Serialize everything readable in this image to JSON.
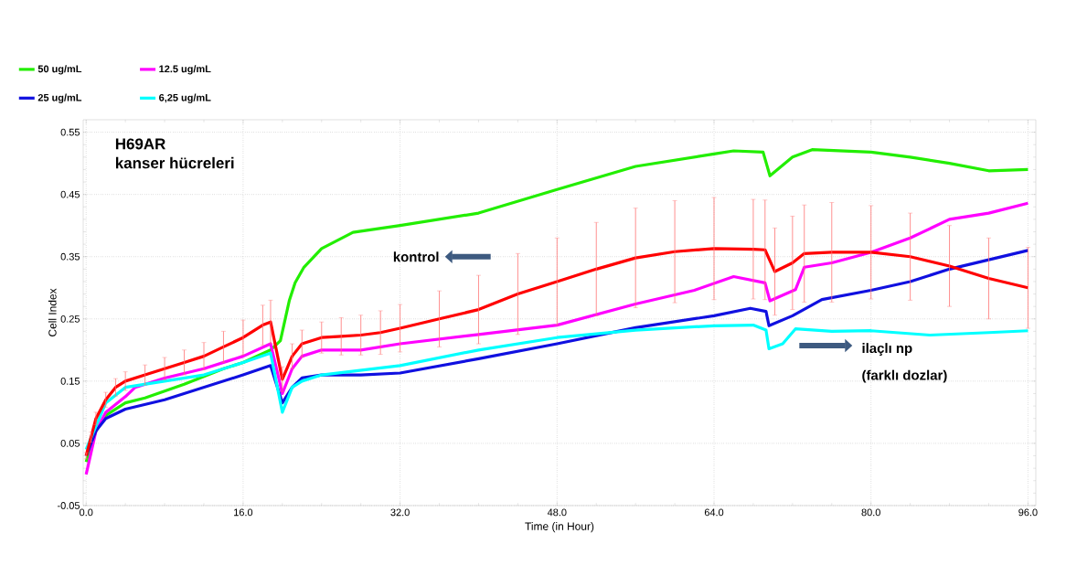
{
  "chart_data": {
    "type": "line",
    "title": "H69AR",
    "subtitle": "kanser hücreleri",
    "xlabel": "Time (in Hour)",
    "ylabel": "Cell Index",
    "annotations": [
      "kontrol",
      "ilaçlı np",
      "(farklı dozlar)"
    ],
    "xlim": [
      -0.3,
      96.8
    ],
    "ylim": [
      -0.05,
      0.57
    ],
    "xticks": [
      {
        "value": 0,
        "label": "0.0"
      },
      {
        "value": 16,
        "label": "16.0"
      },
      {
        "value": 32,
        "label": "32.0"
      },
      {
        "value": 48,
        "label": "48.0"
      },
      {
        "value": 64,
        "label": "64.0"
      },
      {
        "value": 80,
        "label": "80.0"
      },
      {
        "value": 96,
        "label": "96.0"
      }
    ],
    "yticks": [
      -0.05,
      0.05,
      0.15,
      0.25,
      0.35,
      0.45,
      0.55
    ],
    "grid": true,
    "legend": "top left",
    "series": [
      {
        "name": "50 ug/mL",
        "color": "#22ee00",
        "x": [
          0,
          1,
          2,
          4,
          6,
          10,
          14,
          16,
          18.8,
          19.8,
          20.7,
          21.3,
          22.2,
          24,
          27.2,
          32,
          40,
          48,
          56,
          64,
          66,
          69,
          69.7,
          72,
          74,
          80,
          84,
          88,
          92,
          96
        ],
        "values": [
          0.02,
          0.07,
          0.095,
          0.115,
          0.123,
          0.145,
          0.17,
          0.18,
          0.2,
          0.215,
          0.279,
          0.308,
          0.333,
          0.363,
          0.389,
          0.4,
          0.42,
          0.458,
          0.495,
          0.515,
          0.52,
          0.518,
          0.48,
          0.51,
          0.522,
          0.518,
          0.51,
          0.5,
          0.488,
          0.49
        ]
      },
      {
        "name": "12.5 ug/mL",
        "color": "#ff00ff",
        "x": [
          0,
          1,
          2,
          4,
          5,
          8,
          12,
          16,
          18.8,
          20,
          21,
          22,
          24,
          28,
          32,
          40,
          48,
          56,
          62,
          66,
          69.2,
          69.7,
          72.3,
          73.2,
          76,
          80,
          84,
          88,
          92,
          96
        ],
        "values": [
          0.0,
          0.07,
          0.1,
          0.125,
          0.14,
          0.155,
          0.17,
          0.19,
          0.21,
          0.13,
          0.17,
          0.19,
          0.2,
          0.2,
          0.21,
          0.225,
          0.24,
          0.274,
          0.296,
          0.318,
          0.308,
          0.279,
          0.297,
          0.333,
          0.34,
          0.357,
          0.38,
          0.41,
          0.42,
          0.436
        ]
      },
      {
        "name": "25 ug/mL",
        "color": "#1010e0",
        "x": [
          0,
          1,
          2,
          4,
          8,
          12,
          16,
          18.8,
          20,
          21,
          22,
          24,
          28,
          32,
          40,
          48,
          56,
          64,
          67.7,
          69.3,
          69.6,
          72,
          75,
          80,
          84,
          88,
          92,
          96
        ],
        "values": [
          0.03,
          0.07,
          0.09,
          0.105,
          0.12,
          0.14,
          0.16,
          0.175,
          0.115,
          0.14,
          0.155,
          0.16,
          0.16,
          0.163,
          0.186,
          0.21,
          0.236,
          0.255,
          0.267,
          0.262,
          0.239,
          0.255,
          0.281,
          0.296,
          0.31,
          0.33,
          0.345,
          0.36
        ]
      },
      {
        "name": "6,25 ug/mL",
        "color": "#00ffff",
        "x": [
          0,
          1,
          2,
          4,
          8,
          12,
          16,
          18.8,
          20,
          21,
          22,
          24,
          32,
          40,
          48,
          56,
          64,
          68,
          69.3,
          69.6,
          71,
          72.3,
          76,
          80,
          86,
          92,
          96
        ],
        "values": [
          0.04,
          null,
          0.115,
          0.14,
          0.15,
          0.16,
          0.18,
          0.195,
          0.1,
          0.14,
          0.15,
          0.16,
          0.175,
          0.2,
          0.22,
          0.232,
          0.239,
          0.24,
          0.232,
          0.202,
          0.21,
          0.234,
          0.23,
          0.231,
          0.224,
          0.228,
          0.231
        ]
      },
      {
        "color": "#ff0000",
        "x": [
          0,
          0.5,
          1,
          2,
          3,
          4,
          6,
          8,
          10,
          12,
          14,
          16,
          18,
          18.8,
          20,
          21,
          22,
          24,
          26,
          28,
          30,
          32,
          36,
          40,
          44,
          48,
          52,
          56,
          60,
          64,
          68,
          69.2,
          70.2,
          72,
          73.2,
          76,
          80,
          84,
          88,
          92,
          96
        ],
        "values": [
          0.03,
          0.06,
          0.09,
          0.12,
          0.14,
          0.15,
          0.16,
          0.17,
          0.18,
          0.19,
          0.205,
          0.22,
          0.24,
          0.245,
          0.153,
          0.19,
          0.21,
          0.22,
          0.222,
          0.224,
          0.228,
          0.235,
          0.25,
          0.265,
          0.29,
          0.31,
          0.33,
          0.348,
          0.358,
          0.363,
          0.362,
          0.361,
          0.326,
          0.34,
          0.355,
          0.357,
          0.357,
          0.35,
          0.335,
          0.315,
          0.3
        ],
        "errors": [
          0.005,
          0.008,
          0.01,
          0.012,
          0.014,
          0.015,
          0.016,
          0.018,
          0.02,
          0.022,
          0.025,
          0.028,
          0.032,
          0.035,
          0.02,
          0.02,
          0.022,
          0.025,
          0.03,
          0.032,
          0.035,
          0.038,
          0.045,
          0.055,
          0.065,
          0.07,
          0.075,
          0.08,
          0.082,
          0.082,
          0.08,
          0.08,
          0.07,
          0.075,
          0.078,
          0.08,
          0.075,
          0.07,
          0.065,
          0.065,
          0.065
        ]
      }
    ]
  }
}
